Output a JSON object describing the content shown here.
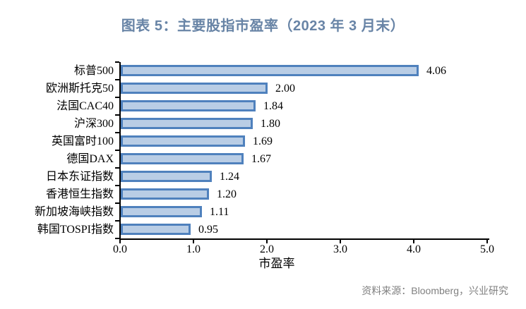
{
  "chart_data": {
    "type": "bar",
    "orientation": "horizontal",
    "title": "图表 5：主要股指市盈率（2023 年 3 月末）",
    "categories": [
      "标普500",
      "欧洲斯托克50",
      "法国CAC40",
      "沪深300",
      "英国富时100",
      "德国DAX",
      "日本东证指数",
      "香港恒生指数",
      "新加坡海峡指数",
      "韩国TOSPI指数"
    ],
    "values": [
      4.06,
      2.0,
      1.84,
      1.8,
      1.69,
      1.67,
      1.24,
      1.2,
      1.11,
      0.95
    ],
    "value_labels": [
      "4.06",
      "2.00",
      "1.84",
      "1.80",
      "1.69",
      "1.67",
      "1.24",
      "1.20",
      "1.11",
      "0.95"
    ],
    "xlabel": "市盈率",
    "ylabel": "",
    "xlim": [
      0.0,
      5.0
    ],
    "x_tick_values": [
      0,
      1,
      2,
      3,
      4,
      5
    ],
    "x_tick_labels": [
      "0.0",
      "1.0",
      "2.0",
      "3.0",
      "4.0",
      "5.0"
    ],
    "grid": false,
    "legend": null,
    "colors": {
      "bar_fill": "#b9cde5",
      "bar_border": "#4f81bd",
      "title_color": "#6884a6",
      "axis_color": "#000000",
      "label_color": "#000000",
      "source_color": "#808080"
    }
  },
  "footer": {
    "source": "资料来源：Bloomberg，兴业研究"
  }
}
